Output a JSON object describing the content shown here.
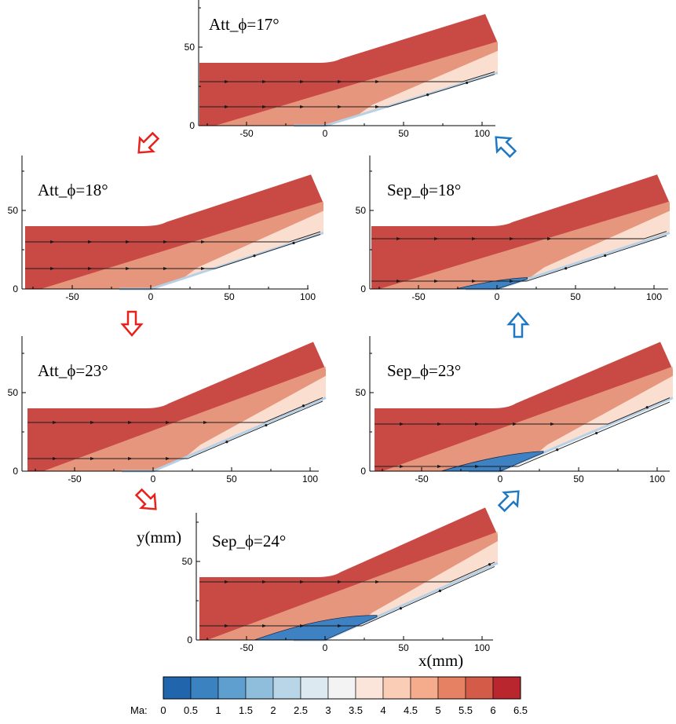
{
  "figure": {
    "x_axis_label": "x(mm)",
    "y_axis_label": "y(mm)",
    "x_ticks": [
      "-50",
      "0",
      "50",
      "100"
    ],
    "y_ticks": [
      "0",
      "50"
    ],
    "x_range_mm": [
      -80,
      105
    ],
    "y_range_mm": [
      0,
      80
    ]
  },
  "panels": [
    {
      "id": "att17",
      "label": "Att_ϕ=17°",
      "regime": "attached",
      "angle_deg": 17,
      "separation_bubble": false,
      "streamline_heights_mm": [
        28,
        12
      ]
    },
    {
      "id": "att18",
      "label": "Att_ϕ=18°",
      "regime": "attached",
      "angle_deg": 18,
      "separation_bubble": false,
      "streamline_heights_mm": [
        30,
        13
      ]
    },
    {
      "id": "sep18",
      "label": "Sep_ϕ=18°",
      "regime": "separated",
      "angle_deg": 18,
      "separation_bubble": true,
      "streamline_heights_mm": [
        32,
        5
      ]
    },
    {
      "id": "att23",
      "label": "Att_ϕ=23°",
      "regime": "attached",
      "angle_deg": 23,
      "separation_bubble": false,
      "streamline_heights_mm": [
        31,
        8
      ]
    },
    {
      "id": "sep23",
      "label": "Sep_ϕ=23°",
      "regime": "separated",
      "angle_deg": 23,
      "separation_bubble": true,
      "streamline_heights_mm": [
        30,
        3
      ]
    },
    {
      "id": "sep24",
      "label": "Sep_ϕ=24°",
      "regime": "separated",
      "angle_deg": 24,
      "separation_bubble": true,
      "streamline_heights_mm": [
        37,
        9
      ]
    }
  ],
  "arrows": [
    {
      "from": "att17",
      "to": "att18",
      "color": "#e8211c",
      "direction": "down-left"
    },
    {
      "from": "att18",
      "to": "att23",
      "color": "#e8211c",
      "direction": "down"
    },
    {
      "from": "att23",
      "to": "sep24",
      "color": "#e8211c",
      "direction": "down-right"
    },
    {
      "from": "sep24",
      "to": "sep23",
      "color": "#1f78c1",
      "direction": "up-right"
    },
    {
      "from": "sep23",
      "to": "sep18",
      "color": "#1f78c1",
      "direction": "up"
    },
    {
      "from": "sep18",
      "to": "att17",
      "color": "#1f78c1",
      "direction": "up-left"
    }
  ],
  "colorbar": {
    "title": "Ma:",
    "ticks": [
      "0",
      "0.5",
      "1",
      "1.5",
      "2",
      "2.5",
      "3",
      "3.5",
      "4",
      "4.5",
      "5",
      "5.5",
      "6",
      "6.5"
    ],
    "colors": [
      "#2166ac",
      "#3a82c0",
      "#5f9fcf",
      "#8fbddc",
      "#b9d6e8",
      "#dde9f1",
      "#f3f3f3",
      "#fbe5da",
      "#f9cdb6",
      "#f4ac8c",
      "#e68263",
      "#d45b48",
      "#b9262e"
    ]
  },
  "colors": {
    "freestream": "#c94a44",
    "post_shock": "#f0b091",
    "expansion": "#fbe2d4",
    "wall_layer": "#b7d0e6",
    "bubble": "#3f82c3",
    "red_arrow": "#e8211c",
    "blue_arrow": "#1f78c1"
  }
}
